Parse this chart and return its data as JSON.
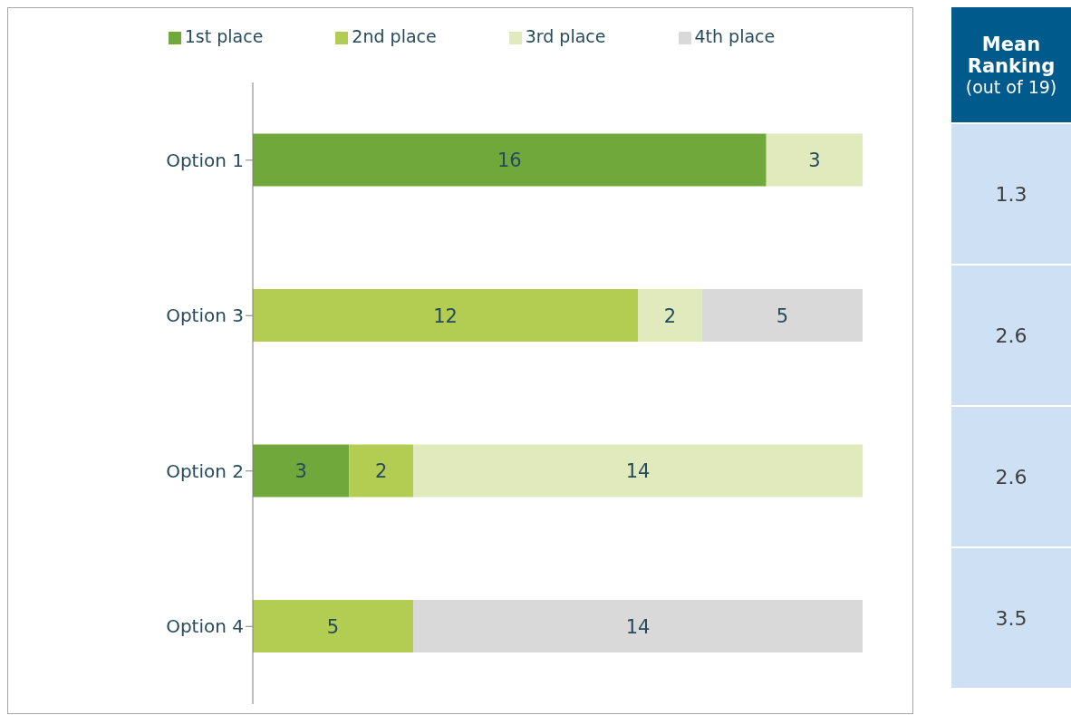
{
  "chart_data": [
    {
      "type": "bar",
      "orientation": "horizontal",
      "stacked": true,
      "data_labels": true,
      "legend": "top",
      "categories": [
        "Option 1",
        "Option 3",
        "Option 2",
        "Option 4"
      ],
      "series": [
        {
          "name": "1st place",
          "color": "#70a83b",
          "values": [
            16,
            null,
            3,
            null
          ]
        },
        {
          "name": "2nd place",
          "color": "#b3cc52",
          "values": [
            null,
            12,
            2,
            5
          ]
        },
        {
          "name": "3rd place",
          "color": "#e0eabd",
          "values": [
            3,
            2,
            14,
            null
          ]
        },
        {
          "name": "4th place",
          "color": "#d9d9d9",
          "values": [
            null,
            5,
            null,
            14
          ]
        }
      ]
    },
    {
      "type": "other",
      "title": "Mean Ranking",
      "subtitle": "(out of 19)",
      "annotations": [
        "1.3",
        "2.6",
        "2.6",
        "3.5"
      ]
    }
  ]
}
